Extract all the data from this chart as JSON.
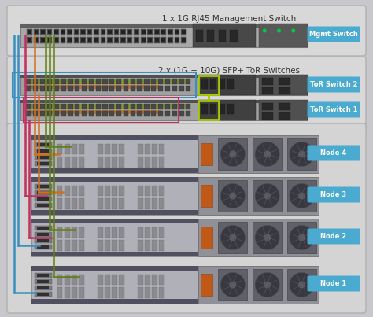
{
  "fig_bg": "#c8c8cc",
  "panel_bg": "#dcdcdc",
  "panel_edge": "#b0b0b0",
  "title_mgmt": "1 x 1G RJ45 Management Switch",
  "title_tor": "2 x (1G + 10G) SFP+ ToR Switches",
  "label_mgmt": "Mgmt Switch",
  "label_tor2": "ToR Switch 2",
  "label_tor1": "ToR Switch 1",
  "label_node4": "Node 4",
  "label_node3": "Node 3",
  "label_node2": "Node 2",
  "label_node1": "Node 1",
  "label_bg": "#4aaad0",
  "label_text_color": "#ffffff",
  "sw_body": "#b0b0b0",
  "sw_port_area": "#787878",
  "sw_dark": "#404040",
  "sw_port": "#303030",
  "sw_rj45_body": "#888888",
  "node_body": "#b8b8b8",
  "node_port_area": "#909090",
  "node_dark": "#505050",
  "fan_dark": "#404040",
  "fan_rim": "#606060",
  "cable_blue": "#3a8fc0",
  "cable_orange": "#d07020",
  "cable_green_dark": "#608010",
  "cable_red": "#c03060",
  "highlight_green": "#a8c800",
  "cable_lw": 1.8
}
